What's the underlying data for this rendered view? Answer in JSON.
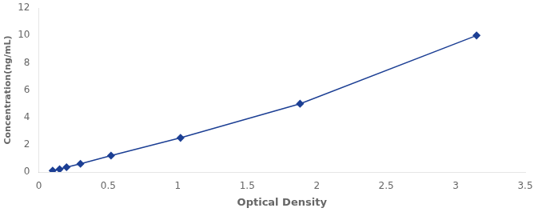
{
  "chart_data": {
    "type": "line",
    "x": [
      0.1,
      0.15,
      0.2,
      0.3,
      0.52,
      1.02,
      1.88,
      3.15
    ],
    "values": [
      0.1,
      0.2,
      0.35,
      0.6,
      1.2,
      2.5,
      5.0,
      10.0
    ],
    "xlabel": "Optical Density",
    "ylabel": "Concentration(ng/mL)",
    "xlim": [
      0,
      3.5
    ],
    "ylim": [
      0,
      12
    ],
    "xticks": [
      0,
      0.5,
      1.0,
      1.5,
      2.0,
      2.5,
      3.0,
      3.5
    ],
    "yticks": [
      0,
      2,
      4,
      6,
      8,
      10,
      12
    ],
    "color": "#1c3f94",
    "marker": "diamond",
    "grid": false
  }
}
